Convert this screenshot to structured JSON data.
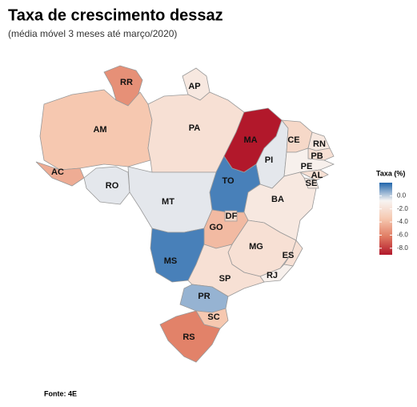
{
  "chart_data": {
    "type": "choropleth",
    "title": "Taxa de crescimento dessaz",
    "subtitle": "(média móvel 3 meses até março/2020)",
    "legend_title": "Taxa (%)",
    "clim": [
      -9,
      2
    ],
    "colors": [
      "#b2182b",
      "#e07b62",
      "#f6c8b0",
      "#f7f4f2",
      "#2166ac"
    ],
    "ticks": [
      {
        "value": 0,
        "label": "0.0"
      },
      {
        "value": -2,
        "label": "-2.0"
      },
      {
        "value": -4,
        "label": "-4.0"
      },
      {
        "value": -6,
        "label": "-6.0"
      },
      {
        "value": -8,
        "label": "-8.0"
      }
    ],
    "regions": {
      "names": [
        "RR",
        "AP",
        "AM",
        "AC",
        "PA",
        "MA",
        "PI",
        "CE",
        "RN",
        "PB",
        "PE",
        "AL",
        "SE",
        "TO",
        "BA",
        "RO",
        "MT",
        "GO",
        "DF",
        "MG",
        "ES",
        "RJ",
        "MS",
        "SP",
        "PR",
        "SC",
        "RS"
      ],
      "values": [
        -5.5,
        -1.5,
        -3.5,
        -4.5,
        -2,
        -9,
        -0.5,
        -2.5,
        -1.5,
        -2,
        -1,
        -2,
        -1.5,
        1.5,
        -1.5,
        -0.5,
        -0.5,
        -4,
        -2.5,
        -2,
        -2,
        -1,
        1.5,
        -2,
        0.5,
        -3.5,
        -6
      ]
    },
    "source": "Fonte: 4E"
  }
}
